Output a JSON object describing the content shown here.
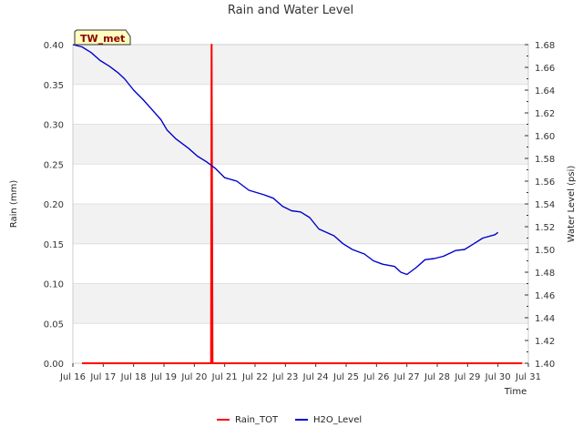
{
  "chart_data": {
    "type": "line",
    "title": "Rain and Water Level",
    "badge": "TW_met",
    "xlabel": "Time",
    "ylabel": "Rain (mm)",
    "y2label": "Water Level (psi)",
    "xlim": [
      16,
      31
    ],
    "ylim": [
      0,
      0.4
    ],
    "y2lim": [
      1.4,
      1.68
    ],
    "x_ticks": [
      {
        "value": 16,
        "label": "Jul 16"
      },
      {
        "value": 17,
        "label": "Jul 17"
      },
      {
        "value": 18,
        "label": "Jul 18"
      },
      {
        "value": 19,
        "label": "Jul 19"
      },
      {
        "value": 20,
        "label": "Jul 20"
      },
      {
        "value": 21,
        "label": "Jul 21"
      },
      {
        "value": 22,
        "label": "Jul 22"
      },
      {
        "value": 23,
        "label": "Jul 23"
      },
      {
        "value": 24,
        "label": "Jul 24"
      },
      {
        "value": 25,
        "label": "Jul 25"
      },
      {
        "value": 26,
        "label": "Jul 26"
      },
      {
        "value": 27,
        "label": "Jul 27"
      },
      {
        "value": 28,
        "label": "Jul 28"
      },
      {
        "value": 29,
        "label": "Jul 29"
      },
      {
        "value": 30,
        "label": "Jul 30"
      },
      {
        "value": 31,
        "label": "Jul 31"
      }
    ],
    "y_ticks": [
      "0.00",
      "0.05",
      "0.10",
      "0.15",
      "0.20",
      "0.25",
      "0.30",
      "0.35",
      "0.40"
    ],
    "y2_ticks": [
      "1.40",
      "1.42",
      "1.44",
      "1.46",
      "1.48",
      "1.50",
      "1.52",
      "1.54",
      "1.56",
      "1.58",
      "1.60",
      "1.62",
      "1.64",
      "1.66",
      "1.68"
    ],
    "grid": true,
    "legend_position": "bottom-center",
    "series": [
      {
        "name": "Rain_TOT",
        "axis": "left",
        "color": "#ff0000",
        "points": [
          [
            16.3,
            0
          ],
          [
            20.55,
            0
          ],
          [
            20.57,
            0.4
          ],
          [
            20.6,
            0
          ],
          [
            30.8,
            0
          ]
        ]
      },
      {
        "name": "H2O_Level",
        "axis": "right",
        "color": "#0000cc",
        "points": [
          [
            16.0,
            1.68
          ],
          [
            16.3,
            1.678
          ],
          [
            16.6,
            1.673
          ],
          [
            16.9,
            1.666
          ],
          [
            17.2,
            1.661
          ],
          [
            17.5,
            1.655
          ],
          [
            17.7,
            1.65
          ],
          [
            18.0,
            1.64
          ],
          [
            18.3,
            1.632
          ],
          [
            18.6,
            1.623
          ],
          [
            18.9,
            1.614
          ],
          [
            19.1,
            1.605
          ],
          [
            19.4,
            1.597
          ],
          [
            19.8,
            1.589
          ],
          [
            20.1,
            1.582
          ],
          [
            20.4,
            1.577
          ],
          [
            20.7,
            1.571
          ],
          [
            21.0,
            1.563
          ],
          [
            21.4,
            1.56
          ],
          [
            21.8,
            1.552
          ],
          [
            22.3,
            1.548
          ],
          [
            22.6,
            1.545
          ],
          [
            22.9,
            1.538
          ],
          [
            23.2,
            1.534
          ],
          [
            23.5,
            1.533
          ],
          [
            23.8,
            1.528
          ],
          [
            24.1,
            1.518
          ],
          [
            24.6,
            1.512
          ],
          [
            24.9,
            1.505
          ],
          [
            25.2,
            1.5
          ],
          [
            25.6,
            1.496
          ],
          [
            25.9,
            1.49
          ],
          [
            26.2,
            1.487
          ],
          [
            26.6,
            1.485
          ],
          [
            26.8,
            1.48
          ],
          [
            27.0,
            1.478
          ],
          [
            27.3,
            1.484
          ],
          [
            27.6,
            1.491
          ],
          [
            27.9,
            1.492
          ],
          [
            28.2,
            1.494
          ],
          [
            28.6,
            1.499
          ],
          [
            28.9,
            1.5
          ],
          [
            29.2,
            1.505
          ],
          [
            29.5,
            1.51
          ],
          [
            29.9,
            1.513
          ],
          [
            30.0,
            1.515
          ]
        ]
      }
    ]
  }
}
